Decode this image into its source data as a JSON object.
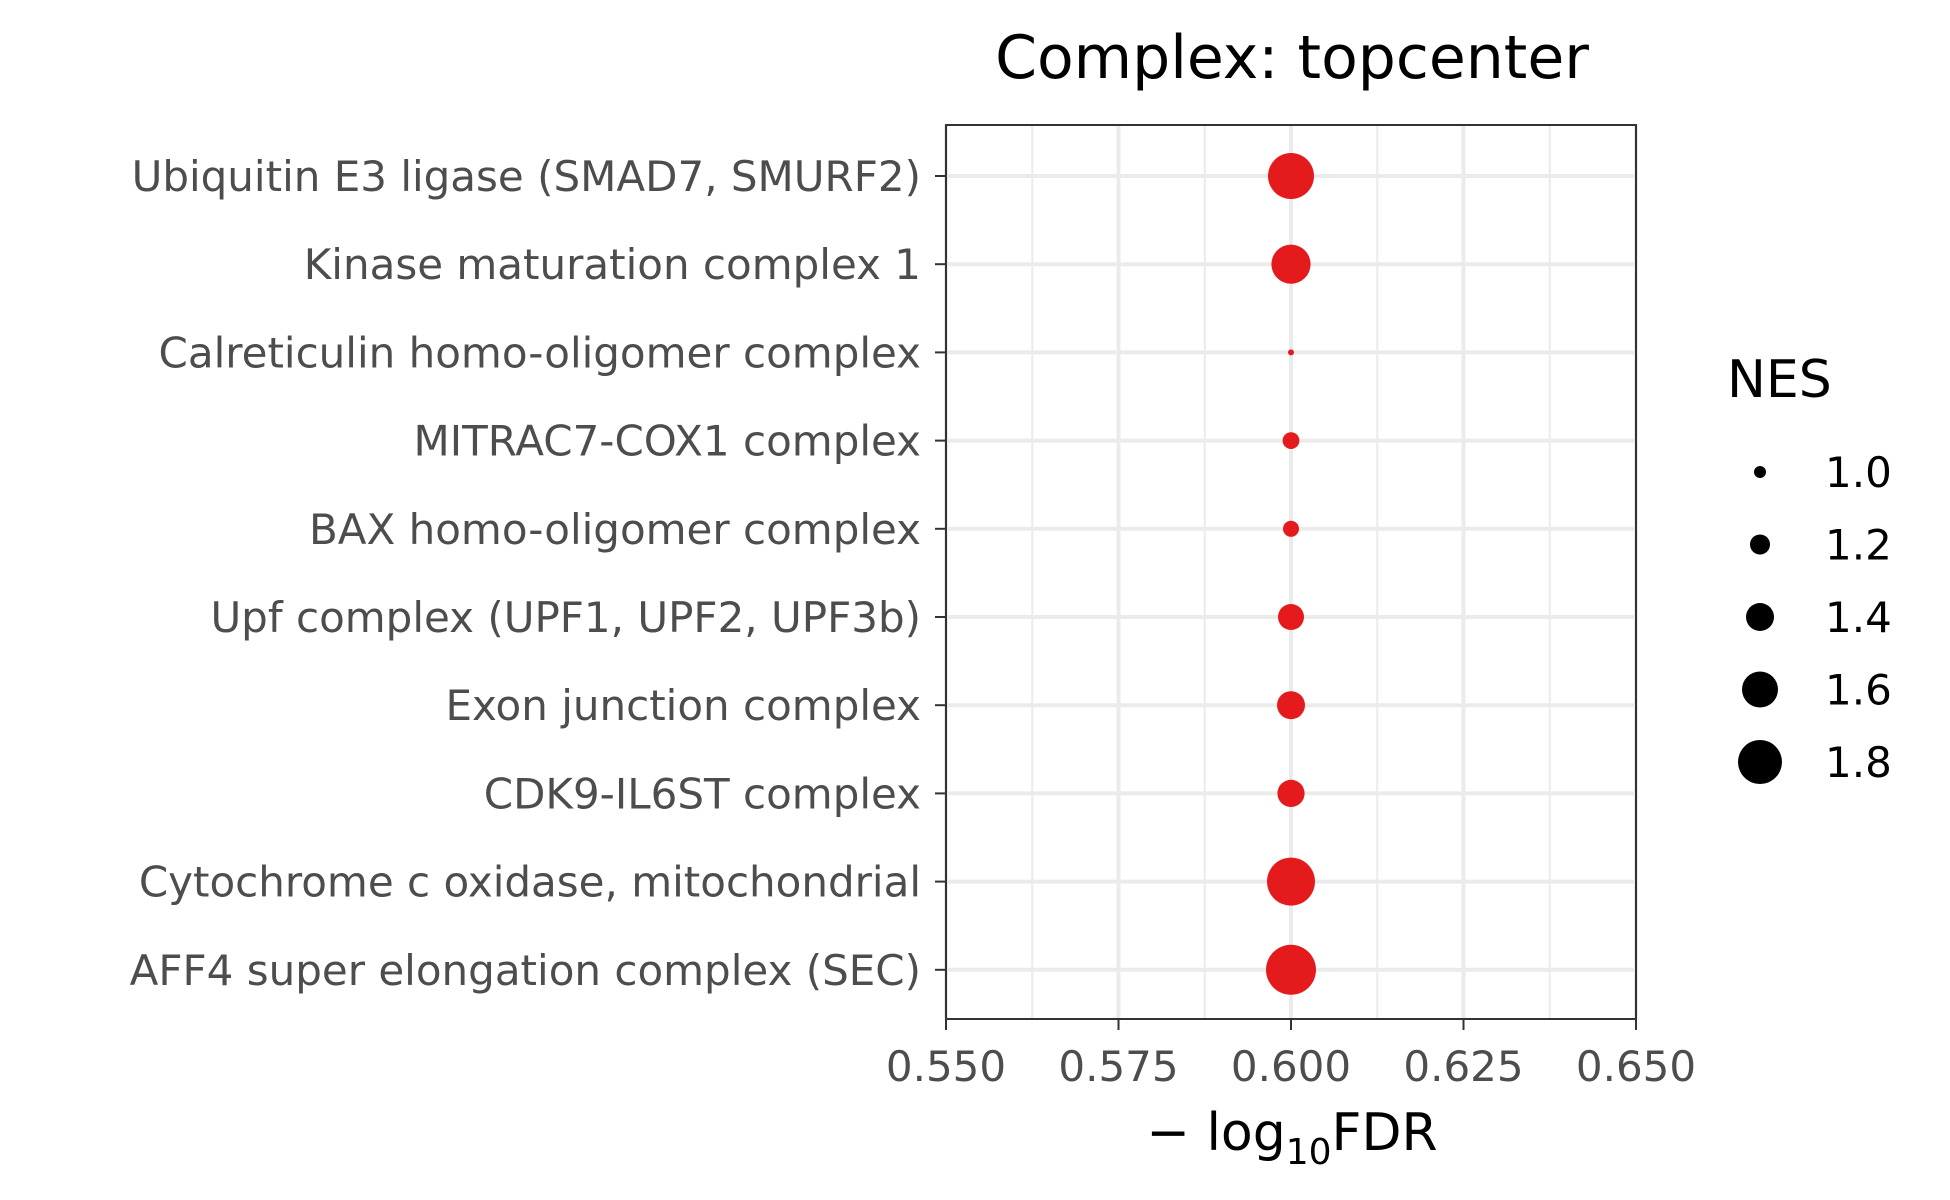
{
  "chart_data": {
    "type": "scatter",
    "title": "Complex: topcenter",
    "xlabel_prefix": "− log",
    "xlabel_sub": "10",
    "xlabel_suffix": "FDR",
    "ylabel": "",
    "xlim": [
      0.55,
      0.65
    ],
    "x_ticks": [
      "0.550",
      "0.575",
      "0.600",
      "0.625",
      "0.650"
    ],
    "x_tick_values": [
      0.55,
      0.575,
      0.6,
      0.625,
      0.65
    ],
    "grid": true,
    "point_color": "#e41a1c",
    "categories": [
      "Ubiquitin E3 ligase (SMAD7, SMURF2)",
      "Kinase maturation complex 1",
      "Calreticulin homo-oligomer complex",
      "MITRAC7-COX1 complex",
      "BAX homo-oligomer complex",
      "Upf complex (UPF1, UPF2, UPF3b)",
      "Exon junction complex",
      "CDK9-IL6ST complex",
      "Cytochrome c oxidase, mitochondrial",
      "AFF4 super elongation complex (SEC)"
    ],
    "x": [
      0.6,
      0.6,
      0.6,
      0.6,
      0.6,
      0.6,
      0.6,
      0.6,
      0.6,
      0.6
    ],
    "nes": [
      1.85,
      1.68,
      0.85,
      1.12,
      1.1,
      1.35,
      1.4,
      1.38,
      1.9,
      1.95
    ],
    "legend": {
      "title": "NES",
      "position": "right",
      "color": "#000000",
      "values": [
        1.0,
        1.2,
        1.4,
        1.6,
        1.8
      ],
      "labels": [
        "1.0",
        "1.2",
        "1.4",
        "1.6",
        "1.8"
      ]
    }
  }
}
